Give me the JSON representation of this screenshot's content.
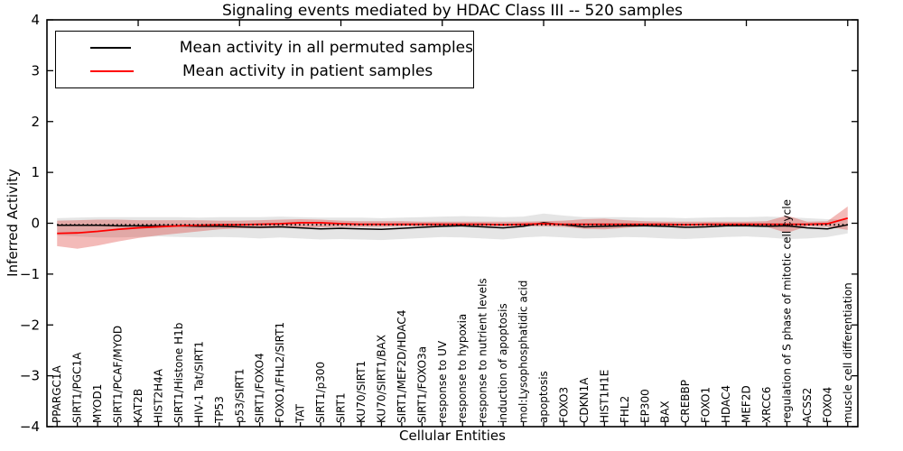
{
  "chart_data": {
    "type": "line",
    "title": "Signaling events mediated by HDAC Class III -- 520 samples",
    "xlabel": "Cellular Entities",
    "ylabel": "Inferred Activity",
    "ylim": [
      -4,
      4
    ],
    "yticks": [
      -4,
      -3,
      -2,
      -1,
      0,
      1,
      2,
      3,
      4
    ],
    "grid": false,
    "legend_position": "upper-left",
    "categories": [
      "PPARGC1A",
      "SIRT1/PGC1A",
      "MYOD1",
      "SIRT1/PCAF/MYOD",
      "KAT2B",
      "HIST2H4A",
      "SIRT1/Histone H1b",
      "HIV-1 Tat/SIRT1",
      "TP53",
      "p53/SIRT1",
      "SIRT1/FOXO4",
      "FOXO1/FHL2/SIRT1",
      "TAT",
      "SIRT1/p300",
      "SIRT1",
      "KU70/SIRT1",
      "KU70/SIRT1/BAX",
      "SIRT1/MEF2D/HDAC4",
      "SIRT1/FOXO3a",
      "response to UV",
      "response to hypoxia",
      "response to nutrient levels",
      "induction of apoptosis",
      "mol:Lysophosphatidic acid",
      "apoptosis",
      "FOXO3",
      "CDKN1A",
      "HIST1H1E",
      "FHL2",
      "EP300",
      "BAX",
      "CREBBP",
      "FOXO1",
      "HDAC4",
      "MEF2D",
      "XRCC6",
      "regulation of S phase of mitotic cell cycle",
      "ACSS2",
      "FOXO4",
      "muscle cell differentiation"
    ],
    "series": [
      {
        "name": "Mean activity in all permuted samples",
        "color": "#000000",
        "band_color": "#e0e0e0",
        "band_opacity": 0.85,
        "values": [
          -0.04,
          -0.04,
          -0.04,
          -0.05,
          -0.05,
          -0.05,
          -0.05,
          -0.06,
          -0.06,
          -0.07,
          -0.08,
          -0.07,
          -0.09,
          -0.11,
          -0.1,
          -0.11,
          -0.12,
          -0.1,
          -0.08,
          -0.06,
          -0.05,
          -0.07,
          -0.09,
          -0.06,
          0.01,
          -0.03,
          -0.07,
          -0.06,
          -0.05,
          -0.05,
          -0.06,
          -0.08,
          -0.07,
          -0.05,
          -0.05,
          -0.06,
          -0.05,
          -0.09,
          -0.11,
          -0.03
        ],
        "band_upper": [
          0.1,
          0.11,
          0.12,
          0.12,
          0.12,
          0.12,
          0.12,
          0.11,
          0.12,
          0.12,
          0.12,
          0.13,
          0.12,
          0.11,
          0.11,
          0.11,
          0.1,
          0.11,
          0.12,
          0.13,
          0.14,
          0.13,
          0.12,
          0.13,
          0.19,
          0.15,
          0.12,
          0.12,
          0.12,
          0.11,
          0.11,
          0.1,
          0.11,
          0.12,
          0.12,
          0.13,
          0.12,
          0.1,
          0.08,
          0.07
        ],
        "band_lower": [
          -0.24,
          -0.26,
          -0.28,
          -0.28,
          -0.27,
          -0.26,
          -0.27,
          -0.28,
          -0.27,
          -0.28,
          -0.3,
          -0.28,
          -0.3,
          -0.32,
          -0.31,
          -0.32,
          -0.33,
          -0.31,
          -0.29,
          -0.27,
          -0.28,
          -0.3,
          -0.32,
          -0.28,
          -0.26,
          -0.28,
          -0.3,
          -0.29,
          -0.27,
          -0.28,
          -0.3,
          -0.31,
          -0.29,
          -0.27,
          -0.26,
          -0.28,
          -0.31,
          -0.3,
          -0.27,
          -0.2
        ]
      },
      {
        "name": "Mean activity in patient samples",
        "color": "#ff0000",
        "band_color": "#dc2d26",
        "band_opacity": 0.33,
        "values": [
          -0.2,
          -0.19,
          -0.16,
          -0.12,
          -0.09,
          -0.07,
          -0.05,
          -0.04,
          -0.03,
          -0.03,
          -0.02,
          -0.01,
          0.01,
          0.01,
          -0.01,
          -0.02,
          -0.02,
          -0.02,
          -0.02,
          -0.02,
          -0.02,
          -0.02,
          -0.03,
          -0.02,
          -0.01,
          -0.02,
          -0.02,
          -0.02,
          -0.02,
          -0.02,
          -0.02,
          -0.03,
          -0.02,
          -0.02,
          -0.02,
          -0.02,
          -0.02,
          -0.02,
          -0.01,
          0.1
        ],
        "band_upper": [
          0.05,
          0.06,
          0.07,
          0.07,
          0.06,
          0.06,
          0.06,
          0.06,
          0.05,
          0.05,
          0.06,
          0.07,
          0.08,
          0.07,
          0.05,
          0.04,
          0.04,
          0.04,
          0.03,
          0.03,
          0.03,
          0.03,
          0.03,
          0.03,
          0.04,
          0.05,
          0.08,
          0.09,
          0.06,
          0.04,
          0.03,
          0.03,
          0.03,
          0.03,
          0.03,
          0.04,
          0.15,
          0.03,
          0.04,
          0.33
        ],
        "band_lower": [
          -0.45,
          -0.5,
          -0.44,
          -0.36,
          -0.29,
          -0.24,
          -0.2,
          -0.16,
          -0.12,
          -0.1,
          -0.1,
          -0.09,
          -0.08,
          -0.08,
          -0.07,
          -0.07,
          -0.07,
          -0.06,
          -0.06,
          -0.06,
          -0.06,
          -0.06,
          -0.06,
          -0.06,
          -0.06,
          -0.07,
          -0.11,
          -0.12,
          -0.09,
          -0.06,
          -0.06,
          -0.06,
          -0.06,
          -0.06,
          -0.06,
          -0.07,
          -0.19,
          -0.06,
          -0.07,
          -0.13
        ]
      }
    ],
    "baseline": {
      "value": -0.03,
      "style": "dotted",
      "color": "#000000"
    },
    "axis_color": "#000000",
    "background_color": "#ffffff"
  }
}
